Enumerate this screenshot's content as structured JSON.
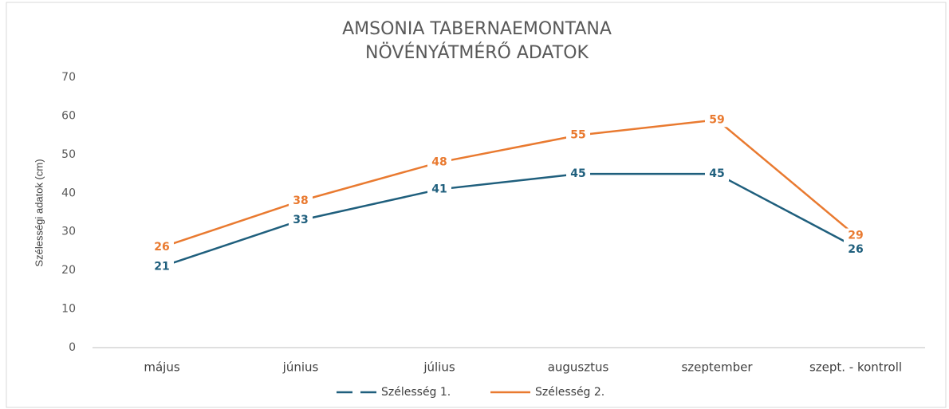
{
  "chart_data": {
    "type": "line",
    "title": [
      "AMSONIA TABERNAEMONTANA",
      "NÖVÉNYÁTMÉRŐ ADATOK"
    ],
    "y_label": "Szélességi adatok (cm)",
    "categories": [
      "május",
      "június",
      "július",
      "augusztus",
      "szeptember",
      "szept. - kontroll"
    ],
    "series": [
      {
        "name": "Szélesség 1.",
        "color": "#1f5f7d",
        "values": [
          21,
          33,
          41,
          45,
          45,
          26
        ]
      },
      {
        "name": "Szélesség 2.",
        "color": "#e97a30",
        "values": [
          26,
          38,
          48,
          55,
          59,
          29
        ]
      }
    ],
    "ylim": [
      0,
      70
    ],
    "yticks": [
      0,
      10,
      20,
      30,
      40,
      50,
      60,
      70
    ],
    "grid": false,
    "legend": "bottom"
  }
}
